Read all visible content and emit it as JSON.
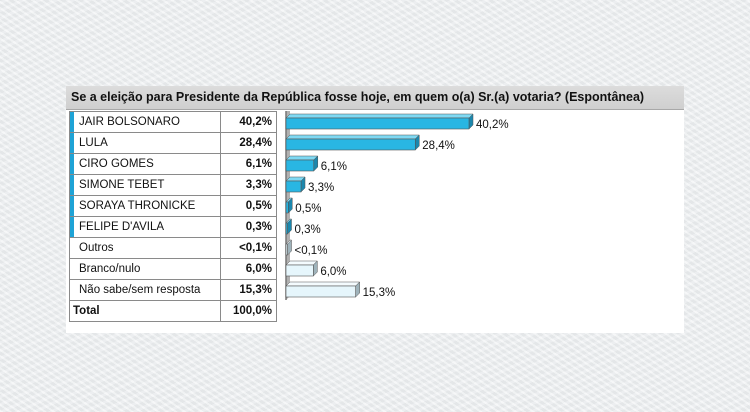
{
  "title": "Se a eleição para Presidente da República fosse hoje, em quem o(a) Sr.(a) votaria? (Espontânea)",
  "colors": {
    "candidate": "#29b6e3",
    "candidate_dark": "#1b87ad",
    "other": "#e6f6fc",
    "other_dark": "#9fb3bb",
    "marker": "#1ea3d6"
  },
  "rows": [
    {
      "label": "JAIR BOLSONARO",
      "percent": "40,2%",
      "bar_label": "40,2%",
      "kind": "candidate"
    },
    {
      "label": "LULA",
      "percent": "28,4%",
      "bar_label": "28,4%",
      "kind": "candidate"
    },
    {
      "label": "CIRO GOMES",
      "percent": "6,1%",
      "bar_label": "6,1%",
      "kind": "candidate"
    },
    {
      "label": "SIMONE TEBET",
      "percent": "3,3%",
      "bar_label": "3,3%",
      "kind": "candidate"
    },
    {
      "label": "SORAYA THRONICKE",
      "percent": "0,5%",
      "bar_label": "0,5%",
      "kind": "candidate"
    },
    {
      "label": "FELIPE D'AVILA",
      "percent": "0,3%",
      "bar_label": "0,3%",
      "kind": "candidate"
    },
    {
      "label": "Outros",
      "percent": "<0,1%",
      "bar_label": "<0,1%",
      "kind": "other"
    },
    {
      "label": "Branco/nulo",
      "percent": "6,0%",
      "bar_label": "6,0%",
      "kind": "other"
    },
    {
      "label": "Não sabe/sem resposta",
      "percent": "15,3%",
      "bar_label": "15,3%",
      "kind": "other"
    }
  ],
  "total": {
    "label": "Total",
    "percent": "100,0%"
  },
  "chart_data": {
    "type": "bar",
    "title": "Se a eleição para Presidente da República fosse hoje, em quem o(a) Sr.(a) votaria? (Espontânea)",
    "categories": [
      "JAIR BOLSONARO",
      "LULA",
      "CIRO GOMES",
      "SIMONE TEBET",
      "SORAYA THRONICKE",
      "FELIPE D'AVILA",
      "Outros",
      "Branco/nulo",
      "Não sabe/sem resposta"
    ],
    "values": [
      40.2,
      28.4,
      6.1,
      3.3,
      0.5,
      0.3,
      0.05,
      6.0,
      15.3
    ],
    "xlim": [
      0,
      40.2
    ],
    "orientation": "horizontal",
    "grid": false,
    "legend": "none"
  }
}
